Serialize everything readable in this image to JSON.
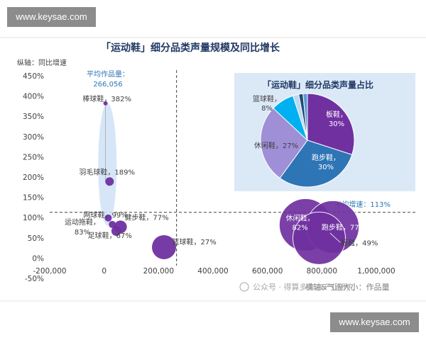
{
  "watermarks": [
    "www.keysae.com",
    "www.keysae.com"
  ],
  "chart_data": [
    {
      "type": "scatter",
      "subtype": "bubble",
      "title": "「运动鞋」细分品类声量规模及同比增长",
      "ylabel": "纵轴：同比增速",
      "xlabel": "横轴&气泡大小：作品量",
      "xlim": [
        -200000,
        1000000
      ],
      "ylim": [
        -50,
        450
      ],
      "x_ticks": [
        "-200,000",
        "0",
        "200,000",
        "400,000",
        "600,000",
        "800,000",
        "1,000,000"
      ],
      "y_ticks": [
        "450%",
        "400%",
        "350%",
        "300%",
        "250%",
        "200%",
        "150%",
        "100%",
        "50%",
        "0%",
        "-50%"
      ],
      "average_x": {
        "label": "平均作品量：",
        "value": "266,056"
      },
      "average_y": {
        "label": "平均增速：113%"
      },
      "points": [
        {
          "name": "棒球鞋",
          "label": "棒球鞋，382%",
          "x": 5000,
          "y": 382
        },
        {
          "name": "羽毛球鞋",
          "label": "羽毛球鞋，189%",
          "x": 20000,
          "y": 189
        },
        {
          "name": "网球鞋",
          "label": "网球鞋，99%",
          "x": 15000,
          "y": 99
        },
        {
          "name": "运动拖鞋",
          "label": "运动拖鞋，83%",
          "x": 30000,
          "y": 83
        },
        {
          "name": "健步鞋",
          "label": "健步鞋，77%",
          "x": 60000,
          "y": 77
        },
        {
          "name": "足球鞋",
          "label": "足球鞋，67%",
          "x": 45000,
          "y": 67
        },
        {
          "name": "篮球鞋",
          "label": "篮球鞋，27%",
          "x": 220000,
          "y": 27
        },
        {
          "name": "休闲鞋",
          "label": "休闲鞋，82%",
          "x": 740000,
          "y": 82
        },
        {
          "name": "跑步鞋",
          "label": "跑步鞋，77%",
          "x": 840000,
          "y": 77
        },
        {
          "name": "板鞋",
          "label": "板鞋，49%",
          "x": 790000,
          "y": 49
        }
      ],
      "source": "公众号 · 得算多未来产业研究"
    },
    {
      "type": "pie",
      "title": "「运动鞋」细分品类声量占比",
      "slices": [
        {
          "label": "板鞋，30%",
          "value": 30,
          "color": "#7030a0"
        },
        {
          "label": "跑步鞋，30%",
          "value": 30,
          "color": "#2e75b6"
        },
        {
          "label": "休闲鞋，27%",
          "value": 27,
          "color": "#9e8fd6"
        },
        {
          "label": "篮球鞋，8%",
          "value": 8,
          "color": "#00b0f0"
        },
        {
          "label": "",
          "value": 2,
          "color": "#bdd7ee"
        },
        {
          "label": "",
          "value": 1.5,
          "color": "#1f4e79"
        },
        {
          "label": "",
          "value": 1.5,
          "color": "#5b9bd5"
        }
      ]
    }
  ],
  "colors": {
    "bubble": "#7030a0",
    "average_line": "#404040",
    "avg_text": "#2e75b6",
    "title": "#203864",
    "pie_panel": "#dbe9f7"
  }
}
